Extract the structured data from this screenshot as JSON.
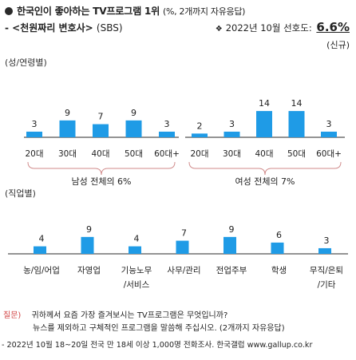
{
  "header": {
    "title": "한국인이 좋아하는 TV프로그램 1위",
    "title_unit": "(%, 2개까지 자유응답)",
    "subtitle": "- <천원짜리 변호사>",
    "network": "(SBS)",
    "preference_label": "2022년 10월 선호도:",
    "preference_value": "6.6%",
    "new_tag": "(신규)"
  },
  "sections": {
    "gender_age": "(성/연령별)",
    "occupation": "(직업별)"
  },
  "chart_data": [
    {
      "type": "bar",
      "categories": [
        "20대",
        "30대",
        "40대",
        "50대",
        "60대+"
      ],
      "series": [
        {
          "name": "남성",
          "values": [
            3,
            9,
            7,
            9,
            3
          ]
        },
        {
          "name": "여성",
          "values": [
            2,
            3,
            14,
            14,
            3
          ]
        }
      ],
      "group_labels": [
        "남성 전체의 6%",
        "여성 전체의 7%"
      ]
    },
    {
      "type": "bar",
      "categories": [
        "농/임/어업",
        "자영업",
        "기능노무/서비스",
        "사무/관리",
        "전업주부",
        "학생",
        "무직/은퇴/기타"
      ],
      "category_lines": [
        [
          "농/임/어업"
        ],
        [
          "자영업"
        ],
        [
          "기능노무",
          "/서비스"
        ],
        [
          "사무/관리"
        ],
        [
          "전업주부"
        ],
        [
          "학생"
        ],
        [
          "무직/은퇴",
          "/기타"
        ]
      ],
      "values": [
        4,
        9,
        4,
        7,
        9,
        6,
        3
      ]
    }
  ],
  "footer": {
    "question_label": "질문)",
    "question_line1": "귀하께서 요즘 가장 즐겨보시는 TV프로그램은 무엇입니까?",
    "question_line2": "뉴스를 제외하고 구체적인 프로그램을 말씀해 주십시오. (2개까지 자유응답)",
    "source": "- 2022년 10월 18~20일 전국 만 18세 이상 1,000명 전화조사. 한국갤럽 www.gallup.co.kr"
  },
  "colors": {
    "bar": "#1f9be6",
    "brace": "#d08a8a",
    "question": "#d04040"
  }
}
